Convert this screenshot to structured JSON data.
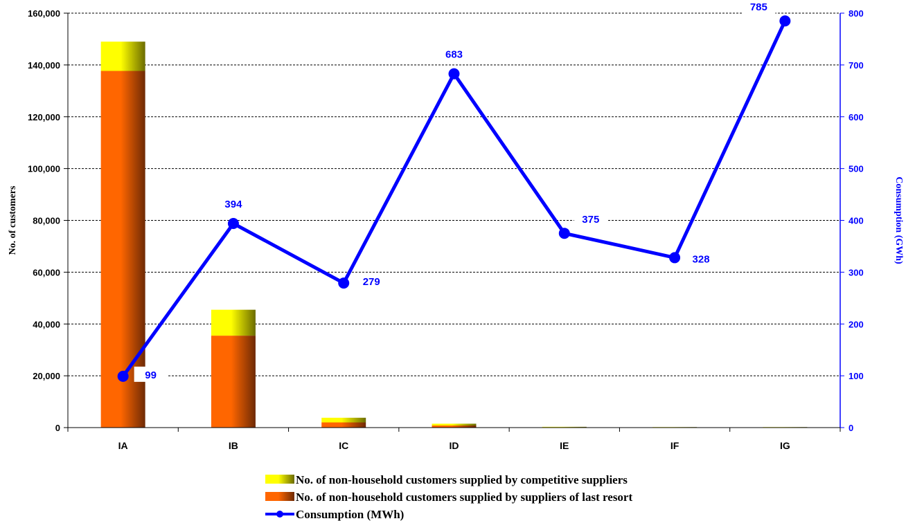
{
  "chart_data": {
    "type": "bar",
    "stacked": true,
    "categories": [
      "IA",
      "IB",
      "IC",
      "ID",
      "IE",
      "IF",
      "IG"
    ],
    "series": [
      {
        "name": "No. of non-household customers supplied by suppliers of last resort",
        "type": "bar",
        "axis": "left",
        "values": [
          137700,
          35500,
          2000,
          800,
          150,
          100,
          100
        ],
        "color": "#ff6600"
      },
      {
        "name": "No. of non-household customers supplied by competitive suppliers",
        "type": "bar",
        "axis": "left",
        "values": [
          11300,
          10000,
          1800,
          700,
          150,
          100,
          100
        ],
        "color": "#ffff00"
      },
      {
        "name": "Consumption (MWh)",
        "type": "line",
        "axis": "right",
        "values": [
          99,
          394,
          279,
          683,
          375,
          328,
          785
        ],
        "data_labels": [
          "99",
          "394",
          "279",
          "683",
          "375",
          "328",
          "785"
        ],
        "color": "#0000ff"
      }
    ],
    "ylabel": "No. of customers",
    "y2label": "Consumption  (GWh)",
    "ylim": [
      0,
      160000
    ],
    "y2lim": [
      0,
      800
    ],
    "yticks": [
      "0",
      "20,000",
      "40,000",
      "60,000",
      "80,000",
      "100,000",
      "120,000",
      "140,000",
      "160,000"
    ],
    "y2ticks": [
      "0",
      "100",
      "200",
      "300",
      "400",
      "500",
      "600",
      "700",
      "800"
    ],
    "grid": true,
    "legend_position": "bottom"
  }
}
